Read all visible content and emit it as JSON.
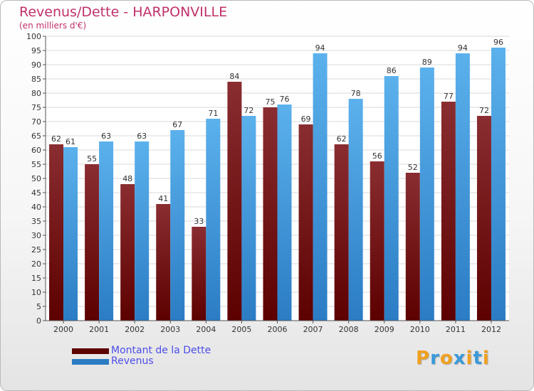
{
  "title": "Revenus/Dette - HARPONVILLE",
  "subtitle": "(en milliers d'€)",
  "colors": {
    "title": "#c0306a",
    "dette_top": "#8a2d31",
    "dette_bottom": "#5c0000",
    "revenus_top": "#5bb1ec",
    "revenus_bottom": "#2b7cc4",
    "legend_text": "#4d4de8"
  },
  "chart_data": {
    "type": "bar",
    "categories": [
      "2000",
      "2001",
      "2002",
      "2003",
      "2004",
      "2005",
      "2006",
      "2007",
      "2008",
      "2009",
      "2010",
      "2011",
      "2012"
    ],
    "series": [
      {
        "name": "Montant de la Dette",
        "values": [
          62,
          55,
          48,
          41,
          33,
          84,
          75,
          69,
          62,
          56,
          52,
          77,
          72
        ]
      },
      {
        "name": "Revenus",
        "values": [
          61,
          63,
          63,
          67,
          71,
          72,
          76,
          94,
          78,
          86,
          89,
          94,
          96
        ]
      }
    ],
    "ylim": [
      0,
      100
    ],
    "ytick_step": 5,
    "grid": true,
    "legend_placement": "bottom-left"
  },
  "logo": {
    "text": "Proxiti",
    "letter_colors": [
      "#f0a020",
      "#3a9ad9",
      "#f0a020",
      "#3a9ad9",
      "#f0a020",
      "#3a9ad9",
      "#f0a020"
    ]
  }
}
